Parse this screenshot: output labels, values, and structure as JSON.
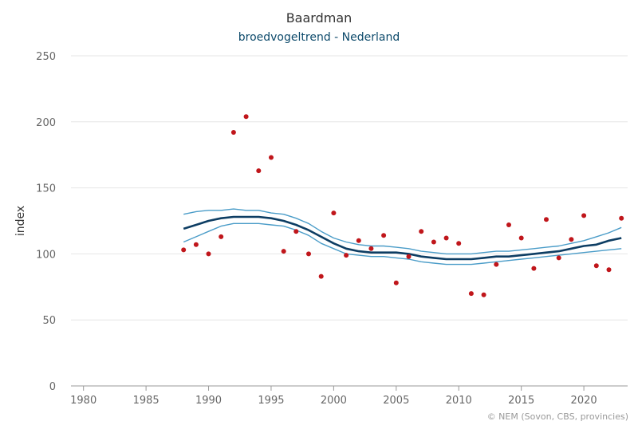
{
  "chart_data": {
    "type": "line",
    "title": "Baardman",
    "subtitle": "broedvogeltrend - Nederland",
    "xlabel": "",
    "ylabel": "index",
    "xlim": [
      1979,
      2023.5
    ],
    "ylim": [
      0,
      250
    ],
    "x_ticks": [
      1980,
      1985,
      1990,
      1995,
      2000,
      2005,
      2010,
      2015,
      2020
    ],
    "y_ticks": [
      0,
      50,
      100,
      150,
      200,
      250
    ],
    "grid": true,
    "legend": "none",
    "credit": "© NEM (Sovon, CBS, provincies)",
    "colors": {
      "trend": "#0d3d63",
      "ci": "#4a9cc8",
      "points": "#c0161b",
      "grid": "#e6e6e6"
    },
    "series": [
      {
        "type": "scatter",
        "x": [
          1988,
          1989,
          1990,
          1991,
          1992,
          1993,
          1994,
          1995,
          1996,
          1997,
          1998,
          1999,
          2000,
          2001,
          2002,
          2003,
          2004,
          2005,
          2006,
          2007,
          2008,
          2009,
          2010,
          2011,
          2012,
          2013,
          2014,
          2015,
          2016,
          2017,
          2018,
          2019,
          2020,
          2021,
          2022,
          2023
        ],
        "values": [
          103,
          107,
          100,
          113,
          192,
          204,
          163,
          173,
          102,
          117,
          100,
          83,
          131,
          99,
          110,
          104,
          114,
          78,
          98,
          117,
          109,
          112,
          108,
          70,
          69,
          92,
          122,
          112,
          89,
          126,
          97,
          111,
          129,
          91,
          88,
          127
        ]
      },
      {
        "type": "line",
        "x": [
          1988,
          1989,
          1990,
          1991,
          1992,
          1993,
          1994,
          1995,
          1996,
          1997,
          1998,
          1999,
          2000,
          2001,
          2002,
          2003,
          2004,
          2005,
          2006,
          2007,
          2008,
          2009,
          2010,
          2011,
          2012,
          2013,
          2014,
          2015,
          2016,
          2017,
          2018,
          2019,
          2020,
          2021,
          2022,
          2023
        ],
        "values": [
          119,
          122,
          125,
          127,
          128,
          128,
          128,
          127,
          125,
          122,
          118,
          113,
          108,
          104,
          102,
          101,
          101,
          101,
          100,
          98,
          97,
          96,
          96,
          96,
          97,
          98,
          98,
          99,
          100,
          101,
          102,
          104,
          106,
          107,
          110,
          112
        ]
      },
      {
        "type": "line",
        "x": [
          1988,
          1989,
          1990,
          1991,
          1992,
          1993,
          1994,
          1995,
          1996,
          1997,
          1998,
          1999,
          2000,
          2001,
          2002,
          2003,
          2004,
          2005,
          2006,
          2007,
          2008,
          2009,
          2010,
          2011,
          2012,
          2013,
          2014,
          2015,
          2016,
          2017,
          2018,
          2019,
          2020,
          2021,
          2022,
          2023
        ],
        "values": [
          130,
          132,
          133,
          133,
          134,
          133,
          133,
          131,
          130,
          127,
          123,
          117,
          112,
          109,
          107,
          106,
          106,
          105,
          104,
          102,
          101,
          100,
          100,
          100,
          101,
          102,
          102,
          103,
          104,
          105,
          106,
          108,
          110,
          113,
          116,
          120
        ]
      },
      {
        "type": "line",
        "x": [
          1988,
          1989,
          1990,
          1991,
          1992,
          1993,
          1994,
          1995,
          1996,
          1997,
          1998,
          1999,
          2000,
          2001,
          2002,
          2003,
          2004,
          2005,
          2006,
          2007,
          2008,
          2009,
          2010,
          2011,
          2012,
          2013,
          2014,
          2015,
          2016,
          2017,
          2018,
          2019,
          2020,
          2021,
          2022,
          2023
        ],
        "values": [
          109,
          113,
          117,
          121,
          123,
          123,
          123,
          122,
          121,
          118,
          114,
          108,
          104,
          100,
          99,
          98,
          98,
          97,
          96,
          94,
          93,
          92,
          92,
          92,
          93,
          94,
          95,
          96,
          97,
          98,
          99,
          100,
          101,
          102,
          103,
          104
        ]
      }
    ]
  }
}
